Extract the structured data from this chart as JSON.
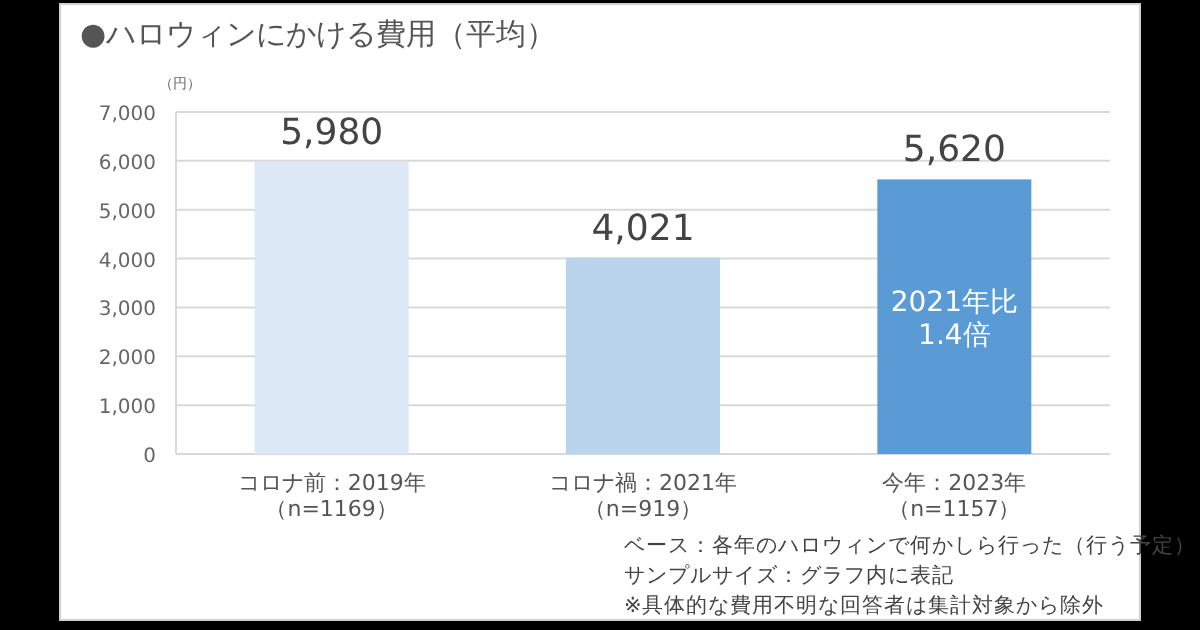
{
  "chart_data": {
    "type": "bar",
    "title": "●ハロウィンにかける費用（平均）",
    "ylabel": "（円）",
    "categories": [
      "コロナ前：2019年（n=1169）",
      "コロナ禍：2021年（n=919）",
      "今年：2023年（n=1157）"
    ],
    "values": [
      5980,
      4021,
      5620
    ],
    "colors": [
      "#dce8f5",
      "#bad4ec",
      "#5b9bd5"
    ],
    "value_labels": [
      "5,980",
      "4,021",
      "5,620"
    ],
    "ylim": [
      0,
      7000
    ],
    "yticks": [
      {
        "value": 0,
        "label": "0"
      },
      {
        "value": 1000,
        "label": "1,000"
      },
      {
        "value": 2000,
        "label": "2,000"
      },
      {
        "value": 3000,
        "label": "3,000"
      },
      {
        "value": 4000,
        "label": "4,000"
      },
      {
        "value": 5000,
        "label": "5,000"
      },
      {
        "value": 6000,
        "label": "6,000"
      },
      {
        "value": 7000,
        "label": "7,000"
      }
    ],
    "grid": "y",
    "annotations": [
      "2021年比1.4倍",
      "ベース：各年のハロウィンで何かしら行った（行う予定）",
      "サンプルサイズ：グラフ内に表記",
      "※具体的な費用不明な回答者は集計対象から除外"
    ]
  }
}
